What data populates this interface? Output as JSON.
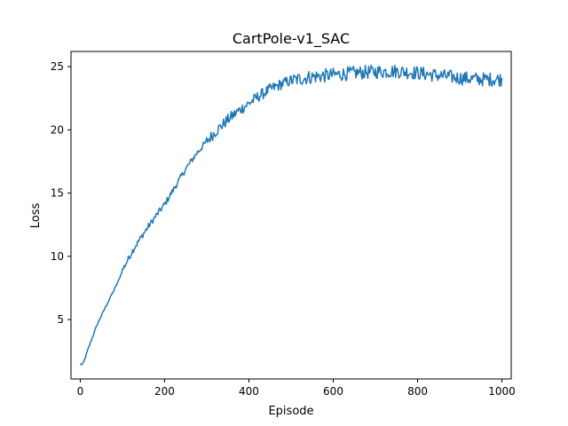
{
  "chart_data": {
    "type": "line",
    "title": "CartPole-v1_SAC",
    "xlabel": "Episode",
    "ylabel": "Loss",
    "xlim": [
      -22,
      1022
    ],
    "ylim": [
      0.3,
      26.2
    ],
    "xticks": [
      0,
      200,
      400,
      600,
      800,
      1000
    ],
    "yticks": [
      5,
      10,
      15,
      20,
      25
    ],
    "grid": false,
    "legend": "none",
    "series": [
      {
        "color": "#1f77b4",
        "trend_points": [
          [
            0,
            1.5
          ],
          [
            5,
            1.4
          ],
          [
            10,
            1.8
          ],
          [
            20,
            2.8
          ],
          [
            30,
            3.7
          ],
          [
            40,
            4.6
          ],
          [
            50,
            5.3
          ],
          [
            60,
            6.0
          ],
          [
            75,
            7.0
          ],
          [
            90,
            8.0
          ],
          [
            100,
            8.9
          ],
          [
            125,
            10.5
          ],
          [
            150,
            11.8
          ],
          [
            175,
            13.0
          ],
          [
            200,
            14.1
          ],
          [
            225,
            15.5
          ],
          [
            250,
            16.9
          ],
          [
            275,
            18.1
          ],
          [
            300,
            19.1
          ],
          [
            325,
            20.0
          ],
          [
            350,
            20.8
          ],
          [
            375,
            21.5
          ],
          [
            400,
            22.1
          ],
          [
            425,
            22.7
          ],
          [
            450,
            23.2
          ],
          [
            475,
            23.6
          ],
          [
            500,
            23.9
          ],
          [
            550,
            24.2
          ],
          [
            600,
            24.35
          ],
          [
            650,
            24.5
          ],
          [
            700,
            24.6
          ],
          [
            750,
            24.65
          ],
          [
            800,
            24.5
          ],
          [
            850,
            24.3
          ],
          [
            900,
            24.1
          ],
          [
            950,
            24.0
          ],
          [
            1000,
            24.0
          ]
        ]
      }
    ]
  }
}
